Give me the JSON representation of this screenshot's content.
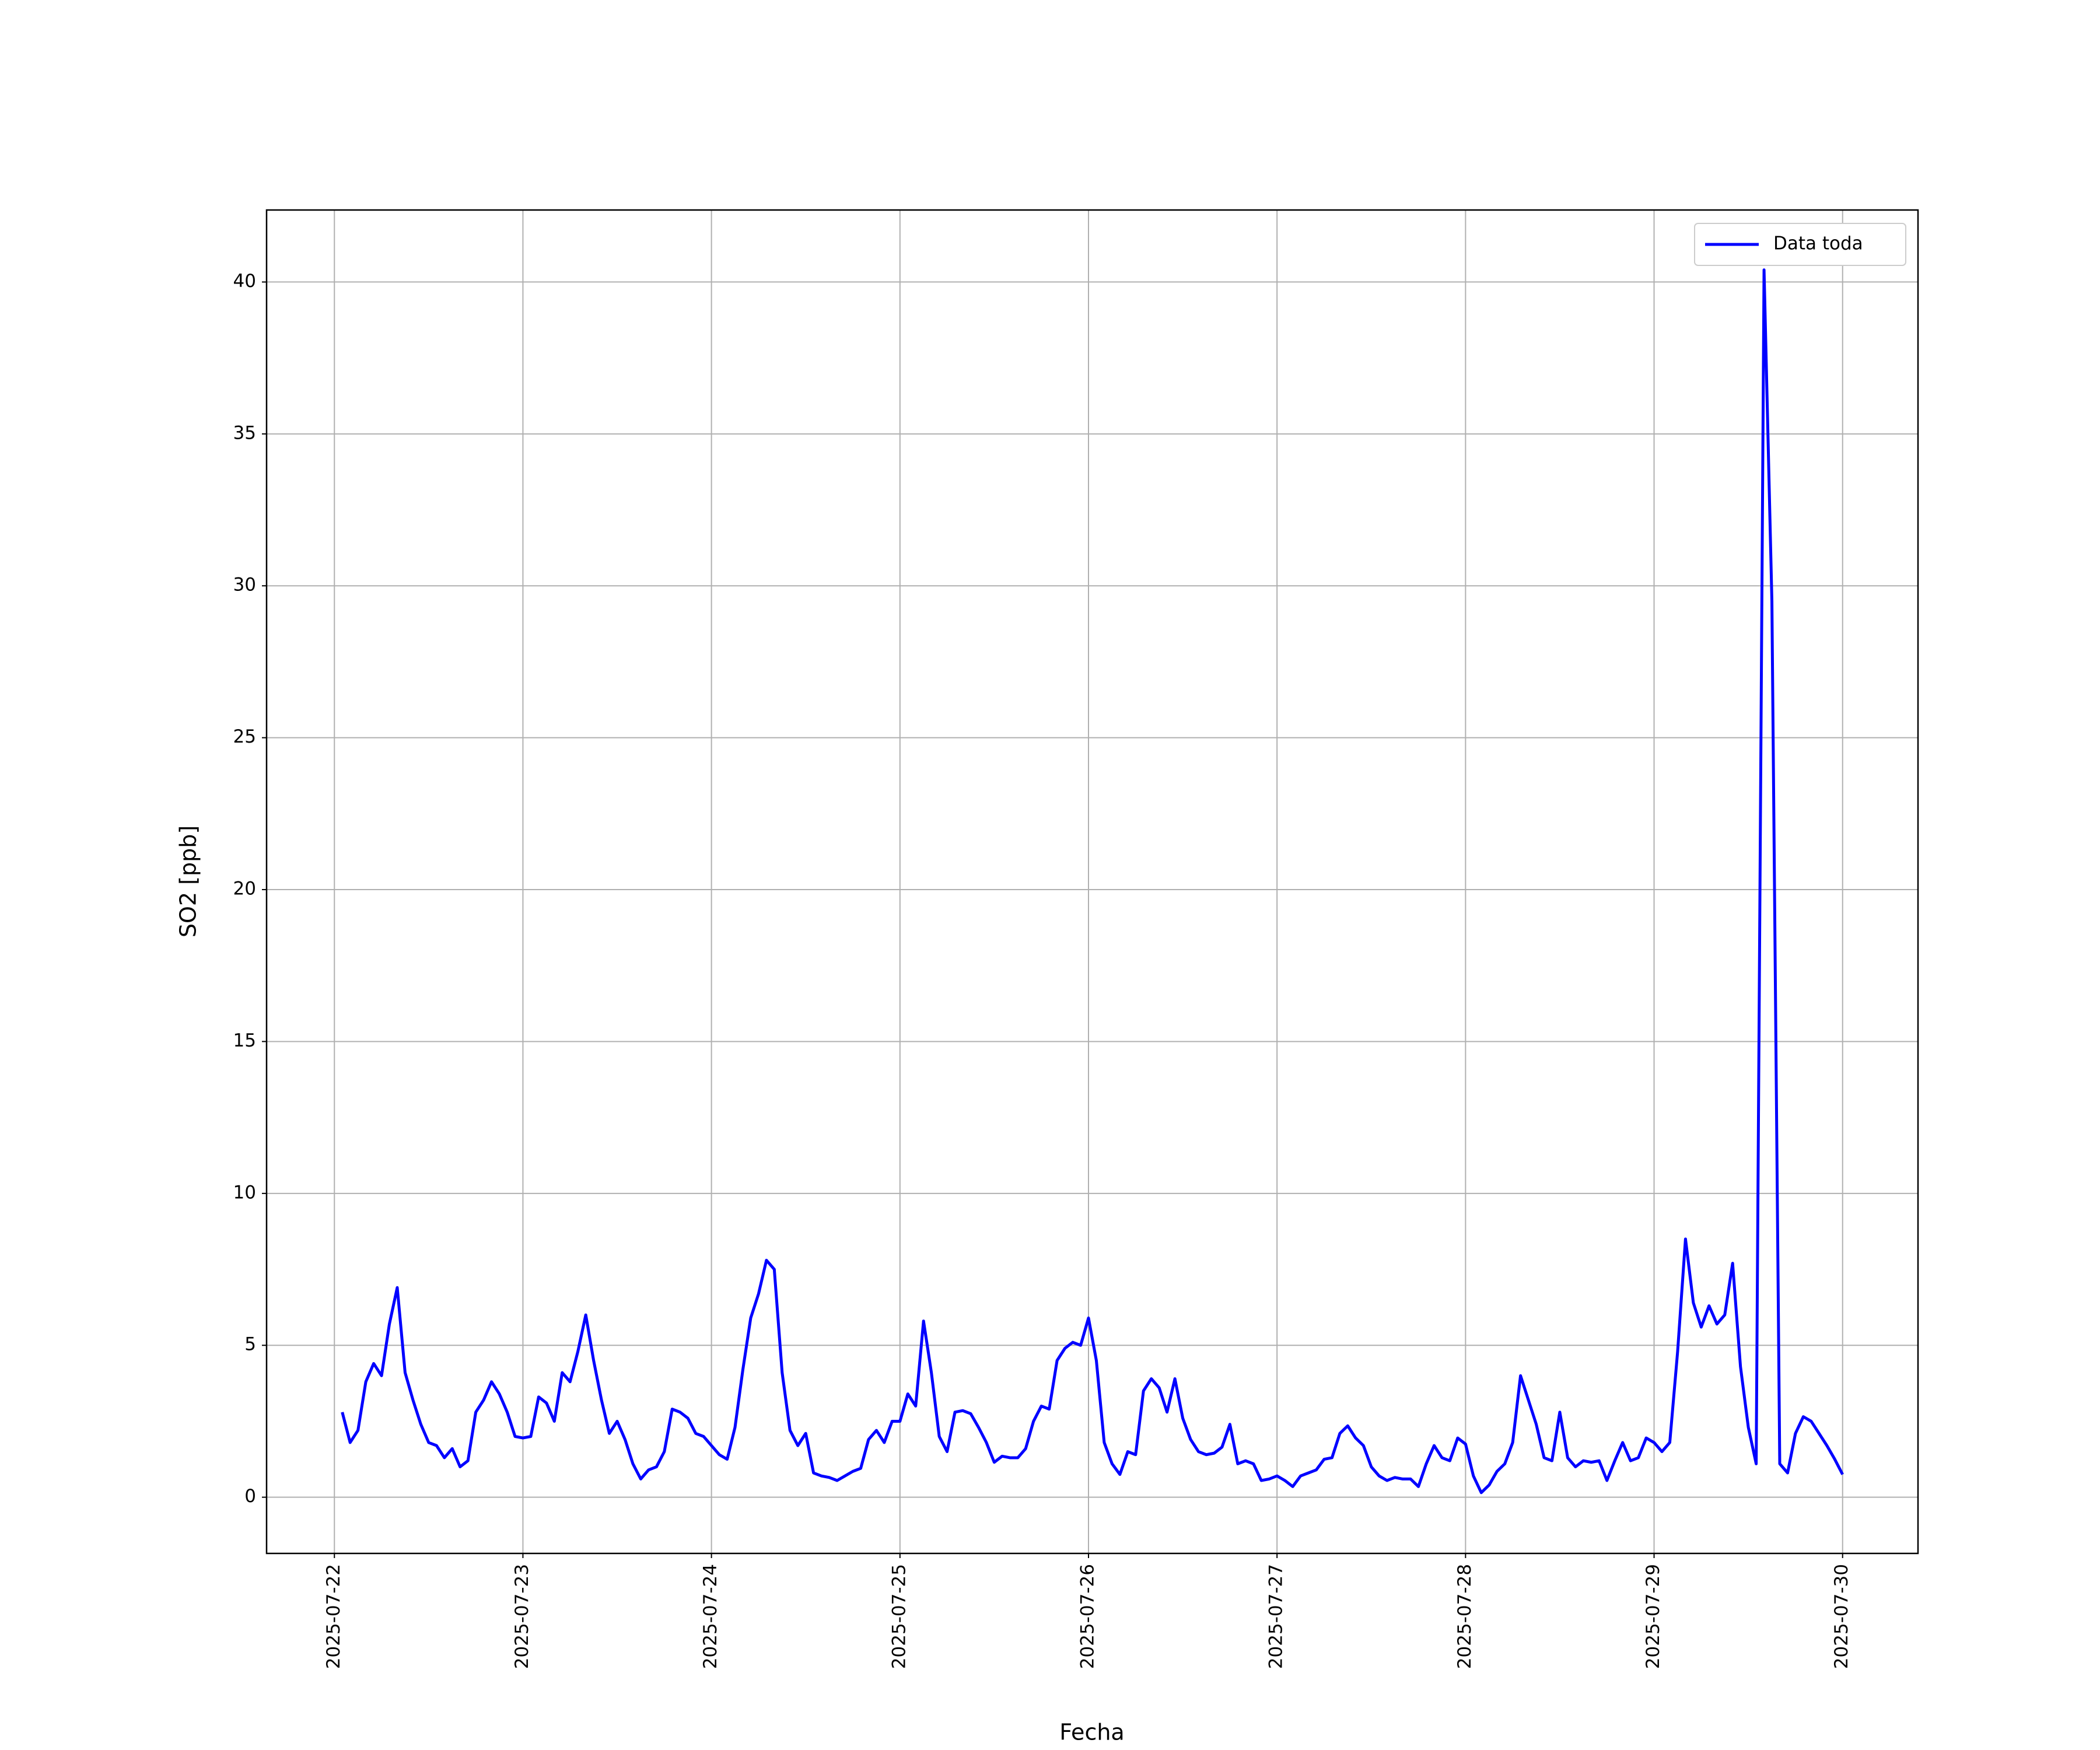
{
  "chart_data": {
    "type": "line",
    "xlabel": "Fecha",
    "ylabel": "SO2 [ppb]",
    "x": [
      "2025-07-22 01:00",
      "2025-07-22 02:00",
      "2025-07-22 03:00",
      "2025-07-22 04:00",
      "2025-07-22 05:00",
      "2025-07-22 06:00",
      "2025-07-22 07:00",
      "2025-07-22 08:00",
      "2025-07-22 09:00",
      "2025-07-22 10:00",
      "2025-07-22 11:00",
      "2025-07-22 12:00",
      "2025-07-22 13:00",
      "2025-07-22 14:00",
      "2025-07-22 15:00",
      "2025-07-22 16:00",
      "2025-07-22 17:00",
      "2025-07-22 18:00",
      "2025-07-22 19:00",
      "2025-07-22 20:00",
      "2025-07-22 21:00",
      "2025-07-22 22:00",
      "2025-07-22 23:00",
      "2025-07-23 00:00",
      "2025-07-23 01:00",
      "2025-07-23 02:00",
      "2025-07-23 03:00",
      "2025-07-23 04:00",
      "2025-07-23 05:00",
      "2025-07-23 06:00",
      "2025-07-23 07:00",
      "2025-07-23 08:00",
      "2025-07-23 09:00",
      "2025-07-23 10:00",
      "2025-07-23 11:00",
      "2025-07-23 12:00",
      "2025-07-23 13:00",
      "2025-07-23 14:00",
      "2025-07-23 15:00",
      "2025-07-23 16:00",
      "2025-07-23 17:00",
      "2025-07-23 18:00",
      "2025-07-23 19:00",
      "2025-07-23 20:00",
      "2025-07-23 21:00",
      "2025-07-23 22:00",
      "2025-07-23 23:00",
      "2025-07-24 00:00",
      "2025-07-24 01:00",
      "2025-07-24 02:00",
      "2025-07-24 03:00",
      "2025-07-24 04:00",
      "2025-07-24 05:00",
      "2025-07-24 06:00",
      "2025-07-24 07:00",
      "2025-07-24 08:00",
      "2025-07-24 09:00",
      "2025-07-24 10:00",
      "2025-07-24 11:00",
      "2025-07-24 12:00",
      "2025-07-24 13:00",
      "2025-07-24 14:00",
      "2025-07-24 15:00",
      "2025-07-24 16:00",
      "2025-07-24 17:00",
      "2025-07-24 18:00",
      "2025-07-24 19:00",
      "2025-07-24 20:00",
      "2025-07-24 21:00",
      "2025-07-24 22:00",
      "2025-07-24 23:00",
      "2025-07-25 00:00",
      "2025-07-25 01:00",
      "2025-07-25 02:00",
      "2025-07-25 03:00",
      "2025-07-25 04:00",
      "2025-07-25 05:00",
      "2025-07-25 06:00",
      "2025-07-25 07:00",
      "2025-07-25 08:00",
      "2025-07-25 09:00",
      "2025-07-25 10:00",
      "2025-07-25 11:00",
      "2025-07-25 12:00",
      "2025-07-25 13:00",
      "2025-07-25 14:00",
      "2025-07-25 15:00",
      "2025-07-25 16:00",
      "2025-07-25 17:00",
      "2025-07-25 18:00",
      "2025-07-25 19:00",
      "2025-07-25 20:00",
      "2025-07-25 21:00",
      "2025-07-25 22:00",
      "2025-07-25 23:00",
      "2025-07-26 00:00",
      "2025-07-26 01:00",
      "2025-07-26 02:00",
      "2025-07-26 03:00",
      "2025-07-26 04:00",
      "2025-07-26 05:00",
      "2025-07-26 06:00",
      "2025-07-26 07:00",
      "2025-07-26 08:00",
      "2025-07-26 09:00",
      "2025-07-26 10:00",
      "2025-07-26 11:00",
      "2025-07-26 12:00",
      "2025-07-26 13:00",
      "2025-07-26 14:00",
      "2025-07-26 15:00",
      "2025-07-26 16:00",
      "2025-07-26 17:00",
      "2025-07-26 18:00",
      "2025-07-26 19:00",
      "2025-07-26 20:00",
      "2025-07-26 21:00",
      "2025-07-26 22:00",
      "2025-07-26 23:00",
      "2025-07-27 00:00",
      "2025-07-27 01:00",
      "2025-07-27 02:00",
      "2025-07-27 03:00",
      "2025-07-27 04:00",
      "2025-07-27 05:00",
      "2025-07-27 06:00",
      "2025-07-27 07:00",
      "2025-07-27 08:00",
      "2025-07-27 09:00",
      "2025-07-27 10:00",
      "2025-07-27 11:00",
      "2025-07-27 12:00",
      "2025-07-27 13:00",
      "2025-07-27 14:00",
      "2025-07-27 15:00",
      "2025-07-27 16:00",
      "2025-07-27 17:00",
      "2025-07-27 18:00",
      "2025-07-27 19:00",
      "2025-07-27 20:00",
      "2025-07-27 21:00",
      "2025-07-27 22:00",
      "2025-07-27 23:00",
      "2025-07-28 00:00",
      "2025-07-28 01:00",
      "2025-07-28 02:00",
      "2025-07-28 03:00",
      "2025-07-28 04:00",
      "2025-07-28 05:00",
      "2025-07-28 06:00",
      "2025-07-28 07:00",
      "2025-07-28 08:00",
      "2025-07-28 09:00",
      "2025-07-28 10:00",
      "2025-07-28 11:00",
      "2025-07-28 12:00",
      "2025-07-28 13:00",
      "2025-07-28 14:00",
      "2025-07-28 15:00",
      "2025-07-28 16:00",
      "2025-07-28 17:00",
      "2025-07-28 18:00",
      "2025-07-28 19:00",
      "2025-07-28 20:00",
      "2025-07-28 21:00",
      "2025-07-28 22:00",
      "2025-07-28 23:00",
      "2025-07-29 00:00",
      "2025-07-29 01:00",
      "2025-07-29 02:00",
      "2025-07-29 03:00",
      "2025-07-29 04:00",
      "2025-07-29 05:00",
      "2025-07-29 06:00",
      "2025-07-29 07:00",
      "2025-07-29 08:00",
      "2025-07-29 09:00",
      "2025-07-29 10:00",
      "2025-07-29 11:00",
      "2025-07-29 12:00",
      "2025-07-29 13:00",
      "2025-07-29 14:00",
      "2025-07-29 15:00",
      "2025-07-29 16:00",
      "2025-07-29 17:00",
      "2025-07-29 18:00",
      "2025-07-29 19:00",
      "2025-07-29 20:00",
      "2025-07-29 21:00",
      "2025-07-29 22:00",
      "2025-07-29 23:00",
      "2025-07-30 00:00"
    ],
    "series": [
      {
        "name": "Data toda",
        "color": "#0000ff",
        "values": [
          2.8,
          1.8,
          2.2,
          3.8,
          4.4,
          4.0,
          5.7,
          6.9,
          4.1,
          3.2,
          2.4,
          1.8,
          1.7,
          1.3,
          1.6,
          1.0,
          1.2,
          2.8,
          3.2,
          3.8,
          3.4,
          2.8,
          2.0,
          1.95,
          2.0,
          3.3,
          3.1,
          2.5,
          4.1,
          3.8,
          4.8,
          6.0,
          4.5,
          3.2,
          2.1,
          2.5,
          1.9,
          1.1,
          0.6,
          0.9,
          1.0,
          1.5,
          2.9,
          2.8,
          2.6,
          2.1,
          2.0,
          1.7,
          1.4,
          1.25,
          2.3,
          4.2,
          5.9,
          6.7,
          7.8,
          7.5,
          4.1,
          2.2,
          1.7,
          2.1,
          0.8,
          0.7,
          0.65,
          0.55,
          0.7,
          0.85,
          0.95,
          1.9,
          2.2,
          1.8,
          2.5,
          2.5,
          3.4,
          3.0,
          5.8,
          4.1,
          2.0,
          1.5,
          2.8,
          2.85,
          2.75,
          2.3,
          1.8,
          1.15,
          1.35,
          1.3,
          1.3,
          1.6,
          2.5,
          3.0,
          2.9,
          4.5,
          4.9,
          5.1,
          5.0,
          5.9,
          4.5,
          1.8,
          1.1,
          0.75,
          1.5,
          1.4,
          3.5,
          3.9,
          3.6,
          2.8,
          3.9,
          2.6,
          1.9,
          1.5,
          1.4,
          1.45,
          1.65,
          2.4,
          1.1,
          1.2,
          1.1,
          0.55,
          0.6,
          0.7,
          0.55,
          0.35,
          0.7,
          0.8,
          0.9,
          1.25,
          1.3,
          2.1,
          2.35,
          1.95,
          1.7,
          1.0,
          0.7,
          0.55,
          0.65,
          0.6,
          0.6,
          0.35,
          1.1,
          1.7,
          1.3,
          1.2,
          1.95,
          1.75,
          0.7,
          0.15,
          0.4,
          0.85,
          1.1,
          1.8,
          4.0,
          3.2,
          2.4,
          1.3,
          1.2,
          2.8,
          1.3,
          1.0,
          1.2,
          1.15,
          1.2,
          0.55,
          1.2,
          1.8,
          1.2,
          1.3,
          1.95,
          1.8,
          1.5,
          1.8,
          4.8,
          8.5,
          6.4,
          5.6,
          6.3,
          5.7,
          6.0,
          7.7,
          4.3,
          2.3,
          1.1,
          40.4,
          29.5,
          1.1,
          0.8,
          2.1,
          2.65,
          2.5,
          2.1,
          1.7,
          1.25,
          0.75
        ]
      }
    ],
    "xlim": [
      "2025-07-21 15:22",
      "2025-07-30 09:36"
    ],
    "xticks": [
      "2025-07-22",
      "2025-07-23",
      "2025-07-24",
      "2025-07-25",
      "2025-07-26",
      "2025-07-27",
      "2025-07-28",
      "2025-07-29",
      "2025-07-30"
    ],
    "ylim": [
      -1.85,
      42.37
    ],
    "yticks": [
      0,
      5,
      10,
      15,
      20,
      25,
      30,
      35,
      40
    ],
    "grid": true,
    "legend": "upper right"
  }
}
